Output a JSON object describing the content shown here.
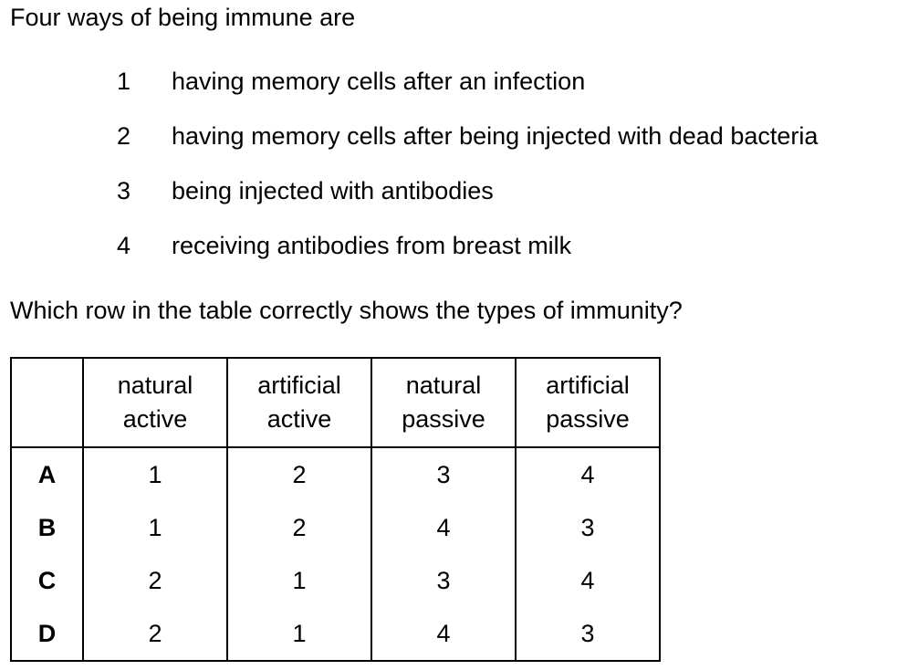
{
  "intro": "Four ways of being immune are",
  "items": [
    {
      "num": "1",
      "text": "having memory cells after an infection"
    },
    {
      "num": "2",
      "text": "having memory cells after being injected with dead bacteria"
    },
    {
      "num": "3",
      "text": "being injected with antibodies"
    },
    {
      "num": "4",
      "text": "receiving antibodies from breast milk"
    }
  ],
  "question": "Which row in the table correctly shows the types of immunity?",
  "table": {
    "headers": [
      {
        "line1": "natural",
        "line2": "active"
      },
      {
        "line1": "artificial",
        "line2": "active"
      },
      {
        "line1": "natural",
        "line2": "passive"
      },
      {
        "line1": "artificial",
        "line2": "passive"
      }
    ],
    "rows": [
      {
        "key": "A",
        "cells": [
          "1",
          "2",
          "3",
          "4"
        ]
      },
      {
        "key": "B",
        "cells": [
          "1",
          "2",
          "4",
          "3"
        ]
      },
      {
        "key": "C",
        "cells": [
          "2",
          "1",
          "3",
          "4"
        ]
      },
      {
        "key": "D",
        "cells": [
          "2",
          "1",
          "4",
          "3"
        ]
      }
    ]
  }
}
